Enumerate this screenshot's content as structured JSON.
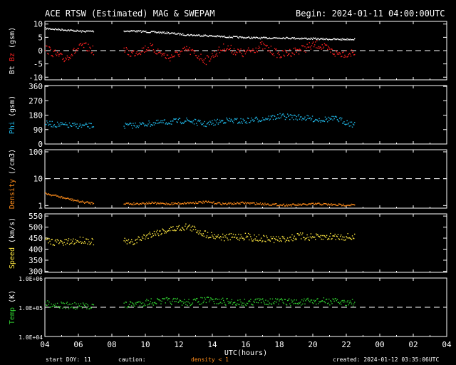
{
  "header": {
    "title": "ACE RTSW (Estimated) MAG & SWEPAM",
    "begin": "Begin: 2024-01-11 04:00:00UTC"
  },
  "footer": {
    "start_doy_label": "start DOY:",
    "start_doy_value": "11",
    "caution_label": "caution:",
    "density_note": "density < 1",
    "created": "created: 2024-01-12 03:35:06UTC"
  },
  "colors": {
    "background": "#000000",
    "axes": "#ffffff",
    "bt": "#ffffff",
    "bz": "#ff2020",
    "phi": "#20b8e8",
    "density": "#ff8c1a",
    "speed": "#ffe840",
    "temp": "#30d030"
  },
  "chart_data": [
    {
      "type": "scatter",
      "title": "Bt / Bz",
      "ylabel_parts": [
        "Bt",
        "Bz",
        "(gsm)"
      ],
      "ylim": [
        -11,
        11
      ],
      "yticks": [
        10,
        5,
        0,
        -5,
        -10
      ],
      "dashed_reference": 0,
      "series": [
        {
          "name": "Bt",
          "color": "#ffffff",
          "hour_offset": [
            0,
            2.9,
            4.7,
            18.5
          ],
          "values": [
            8.5,
            8.0,
            7.4,
            7.6,
            7.2,
            6.8,
            6.1,
            5.8,
            5.4,
            5.1,
            4.9,
            5.0,
            4.8,
            4.6,
            4.4,
            4.5
          ]
        },
        {
          "name": "Bz",
          "color": "#ff2020",
          "hour_offset": [
            0,
            2.9,
            4.7,
            18.5
          ],
          "values": [
            1.0,
            -3.0,
            2.0,
            -1.0,
            1.5,
            -2.5,
            0.5,
            -3.5,
            1.5,
            -1.0,
            2.0,
            -1.5,
            0.5,
            2.5,
            -1.0,
            -0.5
          ]
        }
      ]
    },
    {
      "type": "scatter",
      "title": "Phi",
      "ylabel_parts": [
        "Phi",
        "(gsm)"
      ],
      "ylim": [
        0,
        365
      ],
      "yticks": [
        360,
        270,
        180,
        90,
        0
      ],
      "series": [
        {
          "name": "Phi",
          "color": "#20b8e8",
          "hour_offset": [
            0,
            2.9,
            4.7,
            18.5
          ],
          "values": [
            130,
            120,
            115,
            118,
            130,
            140,
            150,
            125,
            150,
            145,
            160,
            175,
            170,
            155,
            160,
            120
          ]
        }
      ]
    },
    {
      "type": "scatter",
      "title": "Density",
      "ylabel_parts": [
        "Density",
        "(/cm3)"
      ],
      "yscale": "log",
      "ylim": [
        0.8,
        120
      ],
      "yticks": [
        100,
        10,
        1
      ],
      "dashed_reference": 10,
      "series": [
        {
          "name": "Density",
          "color": "#ff8c1a",
          "hour_offset": [
            0,
            2.9,
            4.7,
            18.5
          ],
          "values": [
            3.0,
            2.0,
            1.4,
            1.2,
            1.3,
            1.2,
            1.3,
            1.4,
            1.2,
            1.3,
            1.2,
            1.1,
            1.1,
            1.2,
            1.1,
            1.1
          ]
        }
      ]
    },
    {
      "type": "scatter",
      "title": "Speed",
      "ylabel_parts": [
        "Speed",
        "(km/s)"
      ],
      "ylim": [
        295,
        560
      ],
      "yticks": [
        550,
        500,
        450,
        400,
        350,
        300
      ],
      "series": [
        {
          "name": "Speed",
          "color": "#ffe840",
          "hour_offset": [
            0,
            2.9,
            4.7,
            18.5
          ],
          "values": [
            440,
            430,
            445,
            430,
            470,
            490,
            505,
            470,
            455,
            460,
            450,
            445,
            460,
            455,
            460,
            455
          ]
        }
      ]
    },
    {
      "type": "scatter",
      "title": "Temp",
      "ylabel_parts": [
        "Temp",
        "(K)"
      ],
      "yscale": "log",
      "ylim": [
        10000,
        1000000
      ],
      "yticks_labels": [
        "1.0E+06",
        "1.0E+05",
        "1.0E+04"
      ],
      "yticks": [
        1000000,
        100000,
        10000
      ],
      "dashed_reference": 100000,
      "series": [
        {
          "name": "Temp",
          "color": "#30d030",
          "hour_offset": [
            0,
            2.9,
            4.7,
            18.5
          ],
          "values": [
            140000,
            120000,
            110000,
            130000,
            160000,
            170000,
            150000,
            180000,
            160000,
            150000,
            170000,
            160000,
            150000,
            170000,
            160000,
            150000
          ]
        }
      ]
    }
  ],
  "x_axis": {
    "label": "UTC(hours)",
    "range_hours": [
      0,
      24
    ],
    "tick_labels": [
      "04",
      "06",
      "08",
      "10",
      "12",
      "14",
      "16",
      "18",
      "20",
      "22",
      "00",
      "02",
      "04"
    ]
  }
}
